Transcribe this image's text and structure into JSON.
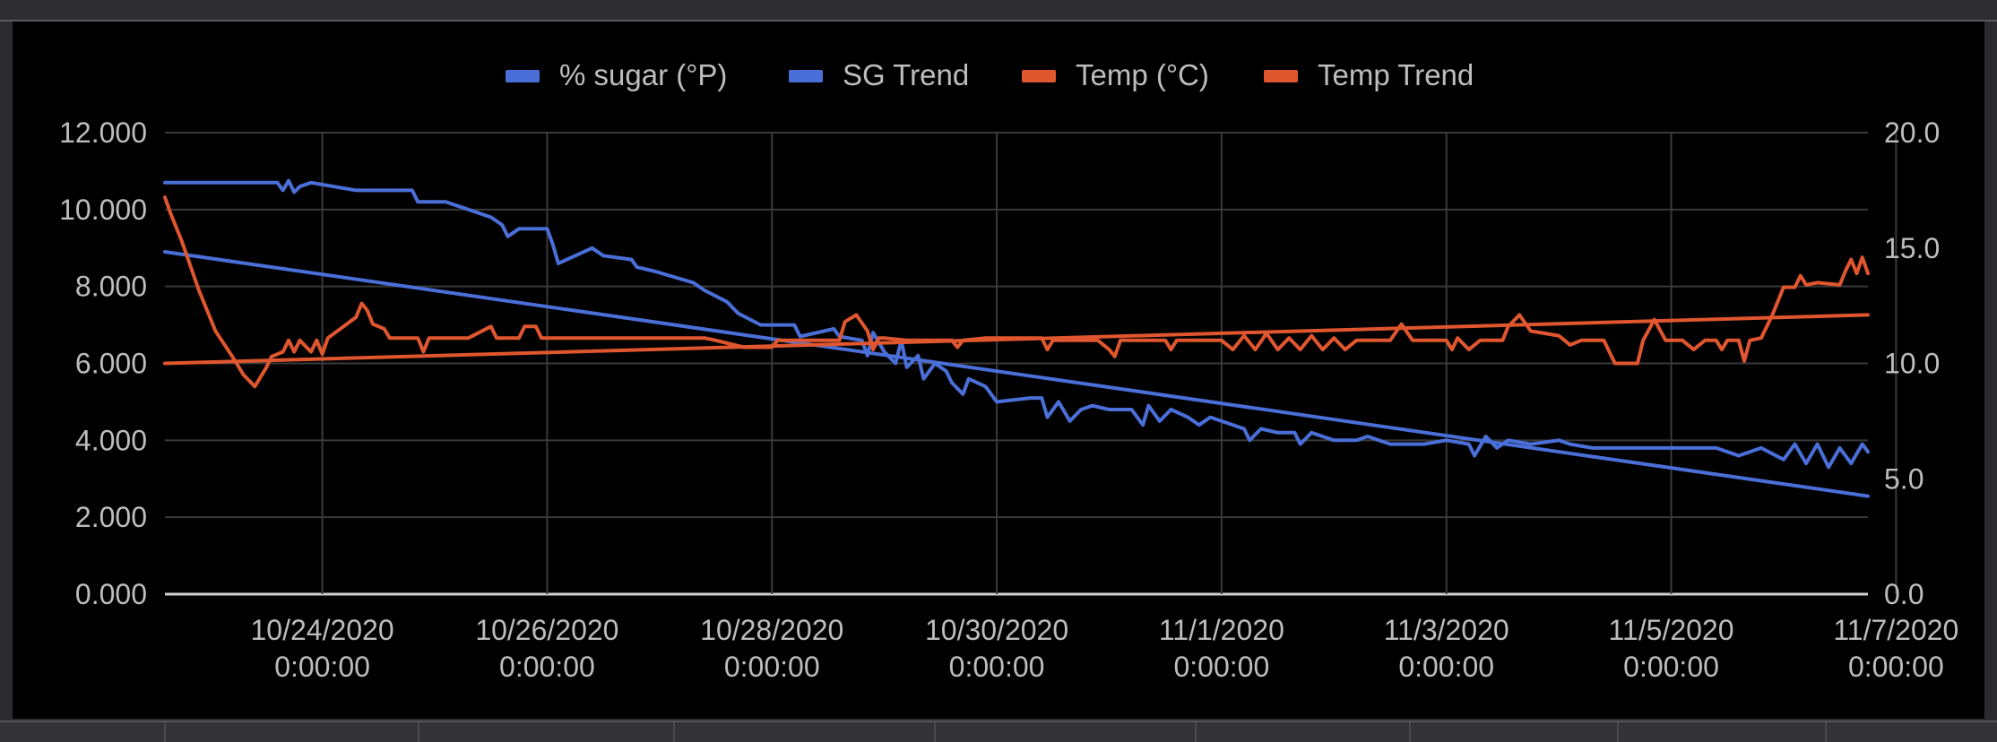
{
  "chart_data": {
    "type": "line",
    "legend": {
      "position": "top",
      "items": [
        {
          "label": "% sugar (°P)",
          "color": "#4a6fd8"
        },
        {
          "label": "SG Trend",
          "color": "#4a6fd8"
        },
        {
          "label": "Temp (°C)",
          "color": "#e0562e"
        },
        {
          "label": "Temp Trend",
          "color": "#e0562e"
        }
      ]
    },
    "x_axis": {
      "range_days": [
        10.6,
        25.75
      ],
      "ticks": [
        {
          "day": 12,
          "line1": "10/24/2020",
          "line2": "0:00:00"
        },
        {
          "day": 14,
          "line1": "10/26/2020",
          "line2": "0:00:00"
        },
        {
          "day": 16,
          "line1": "10/28/2020",
          "line2": "0:00:00"
        },
        {
          "day": 18,
          "line1": "10/30/2020",
          "line2": "0:00:00"
        },
        {
          "day": 20,
          "line1": "11/1/2020",
          "line2": "0:00:00"
        },
        {
          "day": 22,
          "line1": "11/3/2020",
          "line2": "0:00:00"
        },
        {
          "day": 24,
          "line1": "11/5/2020",
          "line2": "0:00:00"
        },
        {
          "day": 26,
          "line1": "11/7/2020",
          "line2": "0:00:00"
        }
      ]
    },
    "y_left": {
      "min": 0,
      "max": 12,
      "ticks": [
        "0.000",
        "2.000",
        "4.000",
        "6.000",
        "8.000",
        "10.000",
        "12.000"
      ]
    },
    "y_right": {
      "min": 0,
      "max": 20,
      "ticks": [
        "0.0",
        "5.0",
        "10.0",
        "15.0",
        "20.0"
      ]
    },
    "grid": true,
    "series": [
      {
        "name": "% sugar (°P)",
        "axis": "left",
        "color": "#4a6fd8",
        "points": [
          [
            10.6,
            10.7
          ],
          [
            11.6,
            10.7
          ],
          [
            11.65,
            10.5
          ],
          [
            11.7,
            10.75
          ],
          [
            11.75,
            10.45
          ],
          [
            11.8,
            10.6
          ],
          [
            11.9,
            10.7
          ],
          [
            12.3,
            10.5
          ],
          [
            12.8,
            10.5
          ],
          [
            12.85,
            10.2
          ],
          [
            13.1,
            10.2
          ],
          [
            13.5,
            9.8
          ],
          [
            13.6,
            9.6
          ],
          [
            13.65,
            9.3
          ],
          [
            13.75,
            9.5
          ],
          [
            14.0,
            9.5
          ],
          [
            14.05,
            9.1
          ],
          [
            14.1,
            8.6
          ],
          [
            14.4,
            9.0
          ],
          [
            14.5,
            8.8
          ],
          [
            14.75,
            8.7
          ],
          [
            14.8,
            8.5
          ],
          [
            14.95,
            8.4
          ],
          [
            15.3,
            8.1
          ],
          [
            15.4,
            7.9
          ],
          [
            15.6,
            7.6
          ],
          [
            15.7,
            7.3
          ],
          [
            15.9,
            7.0
          ],
          [
            16.2,
            7.0
          ],
          [
            16.25,
            6.7
          ],
          [
            16.55,
            6.9
          ],
          [
            16.6,
            6.7
          ],
          [
            16.8,
            6.6
          ],
          [
            16.85,
            6.2
          ],
          [
            16.9,
            6.8
          ],
          [
            17.0,
            6.3
          ],
          [
            17.1,
            6.0
          ],
          [
            17.15,
            6.6
          ],
          [
            17.2,
            5.9
          ],
          [
            17.3,
            6.2
          ],
          [
            17.35,
            5.6
          ],
          [
            17.45,
            6.0
          ],
          [
            17.55,
            5.8
          ],
          [
            17.6,
            5.5
          ],
          [
            17.7,
            5.2
          ],
          [
            17.75,
            5.6
          ],
          [
            17.9,
            5.4
          ],
          [
            18.0,
            5.0
          ],
          [
            18.3,
            5.1
          ],
          [
            18.4,
            5.1
          ],
          [
            18.45,
            4.6
          ],
          [
            18.55,
            5.0
          ],
          [
            18.65,
            4.5
          ],
          [
            18.75,
            4.8
          ],
          [
            18.85,
            4.9
          ],
          [
            19.0,
            4.8
          ],
          [
            19.2,
            4.8
          ],
          [
            19.3,
            4.4
          ],
          [
            19.35,
            4.9
          ],
          [
            19.45,
            4.5
          ],
          [
            19.55,
            4.8
          ],
          [
            19.7,
            4.6
          ],
          [
            19.8,
            4.4
          ],
          [
            19.9,
            4.6
          ],
          [
            20.0,
            4.5
          ],
          [
            20.2,
            4.3
          ],
          [
            20.25,
            4.0
          ],
          [
            20.35,
            4.3
          ],
          [
            20.5,
            4.2
          ],
          [
            20.65,
            4.2
          ],
          [
            20.7,
            3.9
          ],
          [
            20.8,
            4.2
          ],
          [
            21.0,
            4.0
          ],
          [
            21.2,
            4.0
          ],
          [
            21.3,
            4.1
          ],
          [
            21.5,
            3.9
          ],
          [
            21.8,
            3.9
          ],
          [
            22.0,
            4.0
          ],
          [
            22.2,
            3.9
          ],
          [
            22.25,
            3.6
          ],
          [
            22.35,
            4.1
          ],
          [
            22.45,
            3.8
          ],
          [
            22.55,
            4.0
          ],
          [
            22.75,
            3.9
          ],
          [
            23.0,
            4.0
          ],
          [
            23.1,
            3.9
          ],
          [
            23.3,
            3.8
          ],
          [
            23.5,
            3.8
          ],
          [
            23.8,
            3.8
          ],
          [
            24.0,
            3.8
          ],
          [
            24.2,
            3.8
          ],
          [
            24.4,
            3.8
          ],
          [
            24.6,
            3.6
          ],
          [
            24.8,
            3.8
          ],
          [
            25.0,
            3.5
          ],
          [
            25.1,
            3.9
          ],
          [
            25.2,
            3.4
          ],
          [
            25.3,
            3.9
          ],
          [
            25.4,
            3.3
          ],
          [
            25.5,
            3.8
          ],
          [
            25.6,
            3.4
          ],
          [
            25.7,
            3.9
          ],
          [
            25.75,
            3.7
          ]
        ]
      },
      {
        "name": "SG Trend",
        "axis": "left",
        "color": "#4a6fd8",
        "points": [
          [
            10.6,
            8.9
          ],
          [
            25.75,
            2.55
          ]
        ]
      },
      {
        "name": "Temp (°C)",
        "axis": "right",
        "color": "#e0562e",
        "points": [
          [
            10.6,
            17.2
          ],
          [
            10.65,
            16.5
          ],
          [
            10.75,
            15.3
          ],
          [
            10.9,
            13.2
          ],
          [
            11.05,
            11.4
          ],
          [
            11.2,
            10.3
          ],
          [
            11.3,
            9.5
          ],
          [
            11.4,
            9.0
          ],
          [
            11.45,
            9.4
          ],
          [
            11.5,
            9.8
          ],
          [
            11.55,
            10.3
          ],
          [
            11.65,
            10.5
          ],
          [
            11.7,
            11.0
          ],
          [
            11.75,
            10.5
          ],
          [
            11.8,
            11.0
          ],
          [
            11.9,
            10.5
          ],
          [
            11.95,
            11.0
          ],
          [
            12.0,
            10.4
          ],
          [
            12.05,
            11.1
          ],
          [
            12.3,
            12.0
          ],
          [
            12.35,
            12.6
          ],
          [
            12.4,
            12.3
          ],
          [
            12.45,
            11.7
          ],
          [
            12.55,
            11.5
          ],
          [
            12.6,
            11.1
          ],
          [
            12.85,
            11.1
          ],
          [
            12.9,
            10.5
          ],
          [
            12.95,
            11.1
          ],
          [
            13.3,
            11.1
          ],
          [
            13.5,
            11.6
          ],
          [
            13.55,
            11.1
          ],
          [
            13.75,
            11.1
          ],
          [
            13.8,
            11.6
          ],
          [
            13.9,
            11.6
          ],
          [
            13.95,
            11.1
          ],
          [
            14.2,
            11.1
          ],
          [
            14.5,
            11.1
          ],
          [
            14.9,
            11.1
          ],
          [
            15.0,
            11.1
          ],
          [
            15.4,
            11.1
          ],
          [
            15.5,
            11.0
          ],
          [
            15.75,
            10.7
          ],
          [
            16.0,
            10.7
          ],
          [
            16.05,
            11.0
          ],
          [
            16.5,
            11.0
          ],
          [
            16.6,
            11.0
          ],
          [
            16.65,
            11.8
          ],
          [
            16.75,
            12.1
          ],
          [
            16.85,
            11.4
          ],
          [
            16.9,
            10.6
          ],
          [
            16.95,
            11.1
          ],
          [
            17.0,
            11.1
          ],
          [
            17.2,
            11.0
          ],
          [
            17.6,
            11.0
          ],
          [
            17.65,
            10.7
          ],
          [
            17.7,
            11.0
          ],
          [
            17.9,
            11.1
          ],
          [
            18.0,
            11.1
          ],
          [
            18.2,
            11.1
          ],
          [
            18.4,
            11.1
          ],
          [
            18.45,
            10.6
          ],
          [
            18.5,
            11.0
          ],
          [
            18.9,
            11.0
          ],
          [
            19.0,
            10.6
          ],
          [
            19.05,
            10.3
          ],
          [
            19.1,
            11.0
          ],
          [
            19.5,
            11.0
          ],
          [
            19.55,
            10.6
          ],
          [
            19.6,
            11.0
          ],
          [
            20.0,
            11.0
          ],
          [
            20.1,
            10.6
          ],
          [
            20.2,
            11.2
          ],
          [
            20.3,
            10.6
          ],
          [
            20.4,
            11.3
          ],
          [
            20.5,
            10.6
          ],
          [
            20.6,
            11.1
          ],
          [
            20.7,
            10.6
          ],
          [
            20.8,
            11.2
          ],
          [
            20.9,
            10.6
          ],
          [
            21.0,
            11.1
          ],
          [
            21.1,
            10.6
          ],
          [
            21.2,
            11.0
          ],
          [
            21.5,
            11.0
          ],
          [
            21.6,
            11.7
          ],
          [
            21.7,
            11.0
          ],
          [
            22.0,
            11.0
          ],
          [
            22.05,
            10.6
          ],
          [
            22.1,
            11.1
          ],
          [
            22.2,
            10.6
          ],
          [
            22.3,
            11.0
          ],
          [
            22.5,
            11.0
          ],
          [
            22.55,
            11.6
          ],
          [
            22.65,
            12.1
          ],
          [
            22.75,
            11.4
          ],
          [
            23.0,
            11.2
          ],
          [
            23.1,
            10.8
          ],
          [
            23.2,
            11.0
          ],
          [
            23.4,
            11.0
          ],
          [
            23.5,
            10.0
          ],
          [
            23.7,
            10.0
          ],
          [
            23.75,
            11.0
          ],
          [
            23.85,
            11.9
          ],
          [
            23.95,
            11.0
          ],
          [
            24.1,
            11.0
          ],
          [
            24.2,
            10.6
          ],
          [
            24.3,
            11.0
          ],
          [
            24.4,
            11.0
          ],
          [
            24.45,
            10.6
          ],
          [
            24.5,
            11.0
          ],
          [
            24.6,
            11.0
          ],
          [
            24.65,
            10.1
          ],
          [
            24.7,
            11.0
          ],
          [
            24.8,
            11.1
          ],
          [
            24.9,
            12.1
          ],
          [
            25.0,
            13.3
          ],
          [
            25.1,
            13.3
          ],
          [
            25.15,
            13.8
          ],
          [
            25.2,
            13.4
          ],
          [
            25.3,
            13.5
          ],
          [
            25.5,
            13.4
          ],
          [
            25.55,
            14.0
          ],
          [
            25.6,
            14.5
          ],
          [
            25.65,
            13.9
          ],
          [
            25.7,
            14.6
          ],
          [
            25.75,
            13.9
          ]
        ]
      },
      {
        "name": "Temp Trend",
        "axis": "right",
        "color": "#e0562e",
        "points": [
          [
            10.6,
            10.0
          ],
          [
            25.75,
            12.1
          ]
        ]
      }
    ]
  }
}
